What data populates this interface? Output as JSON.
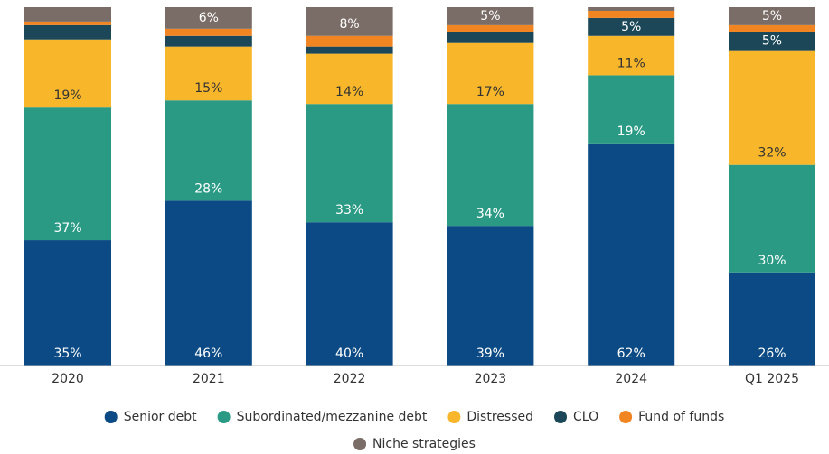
{
  "chart_data": {
    "type": "stacked-bar",
    "categories": [
      "2020",
      "2021",
      "2022",
      "2023",
      "2024",
      "Q1 2025"
    ],
    "ylim": [
      0,
      100
    ],
    "series": [
      {
        "name": "Senior debt",
        "color": "#0b4a84",
        "values": [
          35,
          46,
          40,
          39,
          62,
          26
        ],
        "value_labels": [
          "35%",
          "46%",
          "40%",
          "39%",
          "62%",
          "26%"
        ]
      },
      {
        "name": "Subordinated/mezzanine debt",
        "color": "#2a9a85",
        "values": [
          37,
          28,
          33,
          34,
          19,
          30
        ],
        "value_labels": [
          "37%",
          "28%",
          "33%",
          "34%",
          "19%",
          "30%"
        ]
      },
      {
        "name": "Distressed",
        "color": "#f8b72a",
        "values": [
          19,
          15,
          14,
          17,
          11,
          32
        ],
        "value_labels": [
          "19%",
          "15%",
          "14%",
          "17%",
          "11%",
          "32%"
        ]
      },
      {
        "name": "CLO",
        "color": "#1b4758",
        "values": [
          4,
          3,
          2,
          3,
          5,
          5
        ],
        "value_labels": [
          null,
          null,
          null,
          null,
          "5%",
          "5%"
        ]
      },
      {
        "name": "Fund of funds",
        "color": "#f08522",
        "values": [
          1,
          2,
          3,
          2,
          2,
          2
        ],
        "value_labels": [
          null,
          null,
          null,
          null,
          null,
          null
        ]
      },
      {
        "name": "Niche strategies",
        "color": "#7a6c66",
        "values": [
          4,
          6,
          8,
          5,
          1,
          5
        ],
        "value_labels": [
          null,
          "6%",
          "8%",
          "5%",
          null,
          "5%"
        ]
      }
    ]
  }
}
